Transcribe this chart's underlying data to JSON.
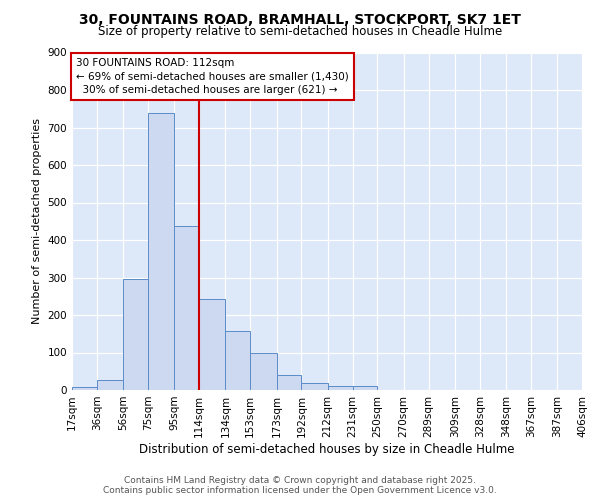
{
  "title": "30, FOUNTAINS ROAD, BRAMHALL, STOCKPORT, SK7 1ET",
  "subtitle": "Size of property relative to semi-detached houses in Cheadle Hulme",
  "xlabel": "Distribution of semi-detached houses by size in Cheadle Hulme",
  "ylabel": "Number of semi-detached properties",
  "bin_edges": [
    17,
    36,
    56,
    75,
    95,
    114,
    134,
    153,
    173,
    192,
    212,
    231,
    250,
    270,
    289,
    309,
    328,
    348,
    367,
    387,
    406
  ],
  "bar_heights": [
    8,
    28,
    295,
    740,
    438,
    242,
    157,
    98,
    40,
    20,
    10,
    10,
    0,
    0,
    0,
    0,
    0,
    0,
    0,
    0
  ],
  "bar_color": "#ccd9f0",
  "bar_edge_color": "#5b8cc8",
  "vline_x": 114,
  "vline_color": "#cc0000",
  "annotation_title": "30 FOUNTAINS ROAD: 112sqm",
  "annotation_line1": "← 69% of semi-detached houses are smaller (1,430)",
  "annotation_line2": "  30% of semi-detached houses are larger (621) →",
  "annotation_box_color": "#ffffff",
  "annotation_border_color": "#cc0000",
  "background_color": "#dde8f8",
  "footer_line1": "Contains HM Land Registry data © Crown copyright and database right 2025.",
  "footer_line2": "Contains public sector information licensed under the Open Government Licence v3.0.",
  "ylim": [
    0,
    900
  ],
  "yticks": [
    0,
    100,
    200,
    300,
    400,
    500,
    600,
    700,
    800,
    900
  ],
  "title_fontsize": 10,
  "subtitle_fontsize": 8.5,
  "ylabel_fontsize": 8,
  "xlabel_fontsize": 8.5,
  "tick_fontsize": 7.5,
  "footer_fontsize": 6.5
}
